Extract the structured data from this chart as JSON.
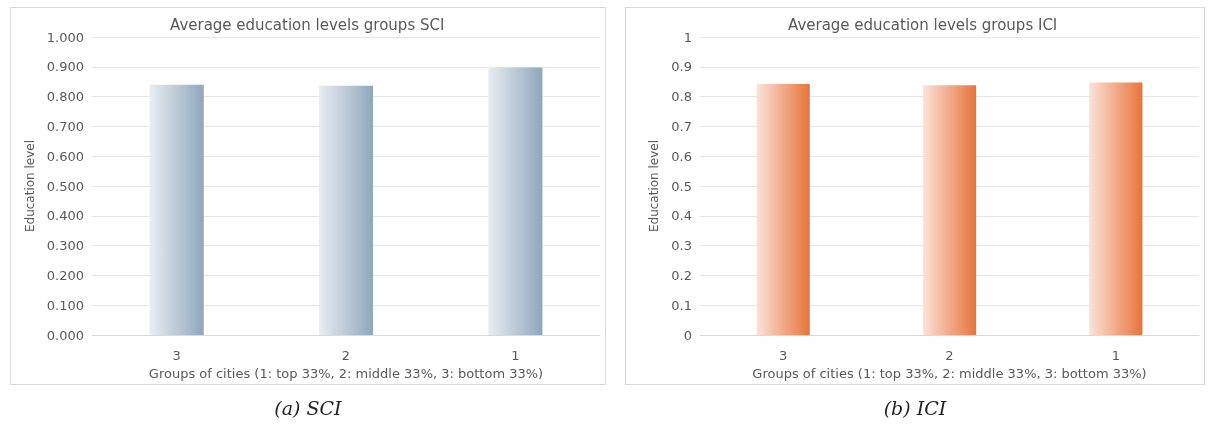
{
  "chart_data": [
    {
      "type": "bar",
      "title": "Average education levels groups SCI",
      "xlabel": "Groups of cities (1: top 33%, 2: middle 33%, 3: bottom 33%)",
      "ylabel": "Education level",
      "categories": [
        "3",
        "2",
        "1"
      ],
      "values": [
        0.84,
        0.836,
        0.898
      ],
      "color": "#8fa6bc",
      "ylim": [
        0,
        1
      ],
      "yticks": [
        {
          "value": 0,
          "label": "0.000"
        },
        {
          "value": 0.1,
          "label": "0.100"
        },
        {
          "value": 0.2,
          "label": "0.200"
        },
        {
          "value": 0.3,
          "label": "0.300"
        },
        {
          "value": 0.4,
          "label": "0.400"
        },
        {
          "value": 0.5,
          "label": "0.500"
        },
        {
          "value": 0.6,
          "label": "0.600"
        },
        {
          "value": 0.7,
          "label": "0.700"
        },
        {
          "value": 0.8,
          "label": "0.800"
        },
        {
          "value": 0.9,
          "label": "0.900"
        },
        {
          "value": 1,
          "label": "1.000"
        }
      ],
      "grid": "y",
      "annotations": [
        "(a) SCI"
      ]
    },
    {
      "type": "bar",
      "title": "Average education levels groups ICI",
      "xlabel": "Groups of cities (1: top 33%, 2: middle 33%, 3: bottom 33%)",
      "ylabel": "Education level",
      "categories": [
        "3",
        "2",
        "1"
      ],
      "values": [
        0.842,
        0.838,
        0.847
      ],
      "color": "#e8733a",
      "ylim": [
        0,
        1
      ],
      "yticks": [
        0,
        0.1,
        0.2,
        0.3,
        0.4,
        0.5,
        0.6,
        0.7,
        0.8,
        0.9,
        1
      ],
      "grid": "y",
      "annotations": [
        "(b) ICI"
      ]
    }
  ]
}
